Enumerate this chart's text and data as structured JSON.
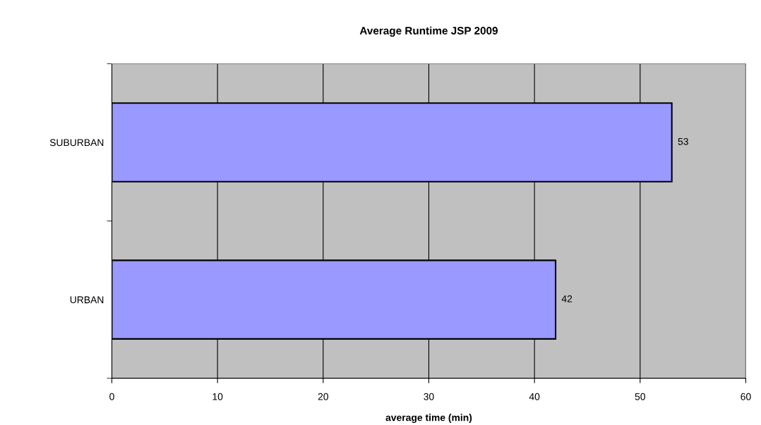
{
  "chart_data": {
    "type": "bar",
    "orientation": "horizontal",
    "title": "Average Runtime JSP 2009",
    "xlabel": "average time (min)",
    "categories": [
      "SUBURBAN",
      "URBAN"
    ],
    "series": [
      {
        "color": "#9999ff",
        "values": [
          53,
          42
        ]
      }
    ],
    "xlim": [
      0,
      60
    ],
    "xticks": [
      0,
      10,
      20,
      30,
      40,
      50,
      60
    ],
    "grid": "x",
    "data_labels": true,
    "legend": false
  }
}
